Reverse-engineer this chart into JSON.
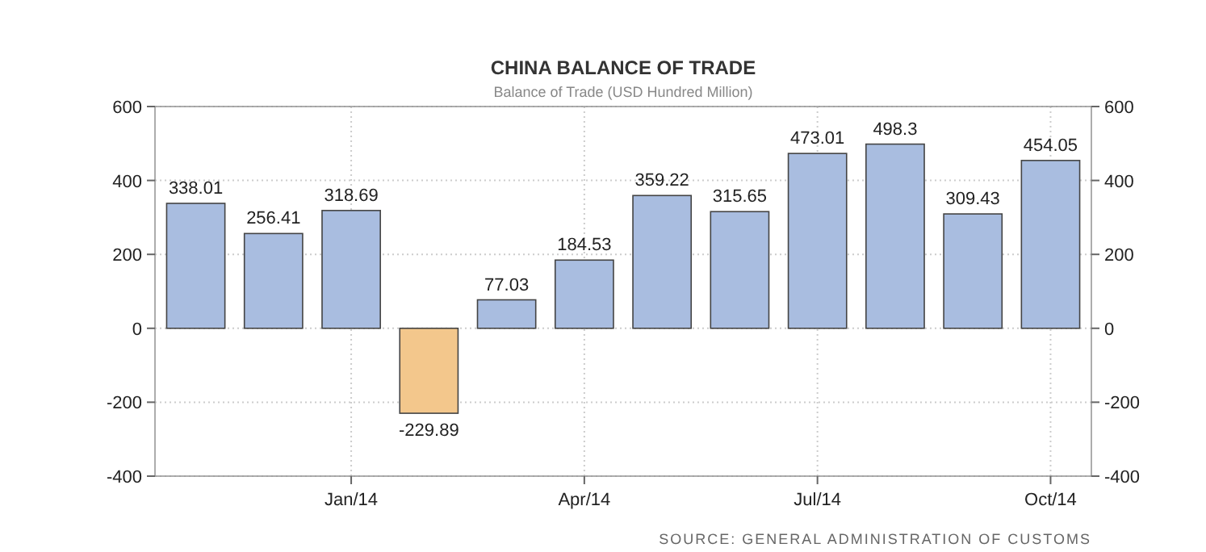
{
  "chart_data": {
    "type": "bar",
    "title": "CHINA BALANCE OF TRADE",
    "subtitle": "Balance of Trade (USD Hundred Million)",
    "categories": [
      null,
      null,
      "Jan/14",
      null,
      null,
      "Apr/14",
      null,
      null,
      "Jul/14",
      null,
      null,
      "Oct/14"
    ],
    "values": [
      338.01,
      256.41,
      318.69,
      -229.89,
      77.03,
      184.53,
      359.22,
      315.65,
      473.01,
      498.3,
      309.43,
      454.05
    ],
    "colors": [
      "#a9bde0",
      "#a9bde0",
      "#a9bde0",
      "#f3c78c",
      "#a9bde0",
      "#a9bde0",
      "#a9bde0",
      "#a9bde0",
      "#a9bde0",
      "#a9bde0",
      "#a9bde0",
      "#a9bde0"
    ],
    "ylim": [
      -400,
      600
    ],
    "yticks": [
      -400,
      -200,
      0,
      200,
      400,
      600
    ],
    "y2lim": [
      -400,
      600
    ],
    "y2ticks": [
      -400,
      -200,
      0,
      200,
      400,
      600
    ],
    "grid": true,
    "data_labels": true,
    "annotations": [
      "SOURCE: GENERAL ADMINISTRATION OF CUSTOMS"
    ]
  }
}
